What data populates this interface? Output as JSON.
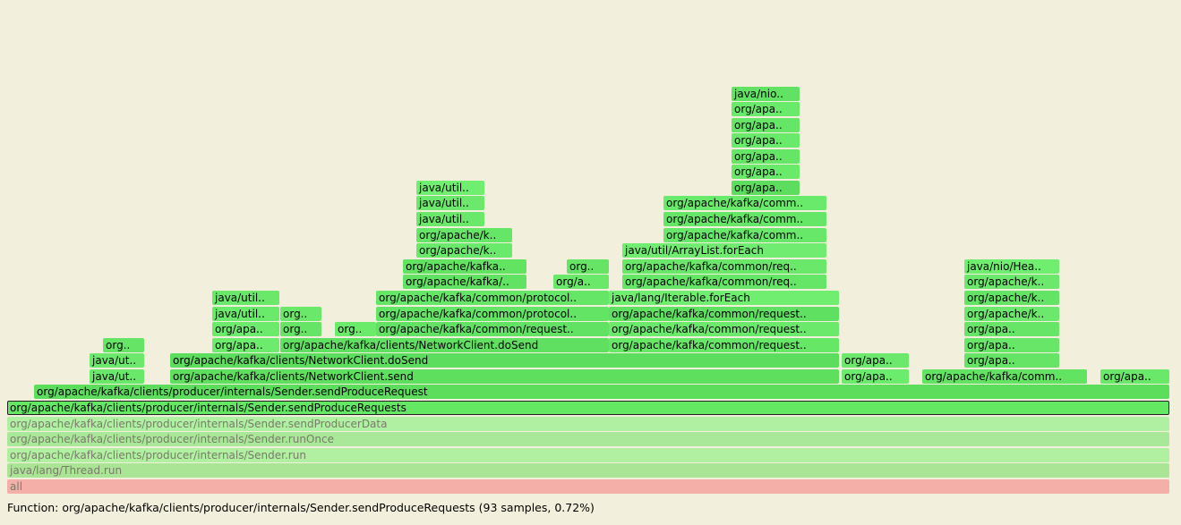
{
  "status": {
    "text": "Function: org/apache/kafka/clients/producer/internals/Sender.sendProduceRequests (93 samples, 0.72%)"
  },
  "frames": [
    {
      "label": "all",
      "color": "#f4b0a8",
      "dim": true
    },
    {
      "label": "java/lang/Thread.run",
      "color": "#a9e594",
      "dim": true
    },
    {
      "label": "org/apache/kafka/clients/producer/internals/Sender.run",
      "color": "#b0f0a0",
      "dim": true
    },
    {
      "label": "org/apache/kafka/clients/producer/internals/Sender.runOnce",
      "color": "#a9e898",
      "dim": true
    },
    {
      "label": "org/apache/kafka/clients/producer/internals/Sender.sendProducerData",
      "color": "#aff0a2",
      "dim": true
    },
    {
      "label": "org/apache/kafka/clients/producer/internals/Sender.sendProduceRequests",
      "color": "#64e864",
      "selected": true
    },
    {
      "label": "org/apache/kafka/clients/producer/internals/Sender.sendProduceRequest",
      "color": "#5cdd5c"
    },
    {
      "label": "java/ut..",
      "color": "#6ae86a"
    },
    {
      "label": "org/apache/kafka/clients/NetworkClient.send",
      "color": "#5ee05e"
    },
    {
      "label": "org/apa..",
      "color": "#6cec6c"
    },
    {
      "label": "org/apache/kafka/comm..",
      "color": "#62e462"
    },
    {
      "label": "org/apa..",
      "color": "#6ae86a"
    },
    {
      "label": "java/ut..",
      "color": "#6ce96c"
    },
    {
      "label": "org/apache/kafka/clients/NetworkClient.doSend",
      "color": "#5ddd5d"
    },
    {
      "label": "org/apa..",
      "color": "#6ce96c"
    },
    {
      "label": "org/apa..",
      "color": "#66e466"
    },
    {
      "label": "org..",
      "color": "#66e466"
    },
    {
      "label": "org/apa..",
      "color": "#6ceb6c"
    },
    {
      "label": "org/apache/kafka/clients/NetworkClient.doSend",
      "color": "#60e060"
    },
    {
      "label": "org/apache/kafka/common/request..",
      "color": "#66e766"
    },
    {
      "label": "org/apa..",
      "color": "#68e668"
    },
    {
      "label": "org/apa..",
      "color": "#6cea6c"
    },
    {
      "label": "org..",
      "color": "#66e466"
    },
    {
      "label": "org..",
      "color": "#6aec6a"
    },
    {
      "label": "org/apache/kafka/common/request..",
      "color": "#62e262"
    },
    {
      "label": "org/apache/kafka/common/request..",
      "color": "#6ae96a"
    },
    {
      "label": "org/apa..",
      "color": "#66e566"
    },
    {
      "label": "java/util..",
      "color": "#6aea6a"
    },
    {
      "label": "org..",
      "color": "#6ae86a"
    },
    {
      "label": "org/apache/kafka/common/protocol..",
      "color": "#64e464"
    },
    {
      "label": "org/apache/kafka/common/request..",
      "color": "#60e060"
    },
    {
      "label": "org/apache/k..",
      "color": "#6ce86c"
    },
    {
      "label": "java/util..",
      "color": "#6ae86a"
    },
    {
      "label": "org/apache/kafka/common/protocol..",
      "color": "#66e666"
    },
    {
      "label": "java/lang/Iterable.forEach",
      "color": "#70ee70"
    },
    {
      "label": "org/apache/k..",
      "color": "#64e464"
    },
    {
      "label": "org/apache/kafka/..",
      "color": "#62e262"
    },
    {
      "label": "org/a..",
      "color": "#6ae86a"
    },
    {
      "label": "org/apache/kafka/common/req..",
      "color": "#66e666"
    },
    {
      "label": "org/apache/k..",
      "color": "#6ce86c"
    },
    {
      "label": "org/apache/kafka..",
      "color": "#62e362"
    },
    {
      "label": "org..",
      "color": "#66e466"
    },
    {
      "label": "org/apache/kafka/common/req..",
      "color": "#6ae86a"
    },
    {
      "label": "java/nio/Hea..",
      "color": "#70ee70"
    },
    {
      "label": "org/apache/k..",
      "color": "#6aea6a"
    },
    {
      "label": "java/util/ArrayList.forEach",
      "color": "#70ec70"
    },
    {
      "label": "org/apache/k..",
      "color": "#66e666"
    },
    {
      "label": "org/apache/kafka/comm..",
      "color": "#68e868"
    },
    {
      "label": "java/util..",
      "color": "#6ae86a"
    },
    {
      "label": "org/apache/kafka/comm..",
      "color": "#66e666"
    },
    {
      "label": "java/util..",
      "color": "#6ce86c"
    },
    {
      "label": "org/apache/kafka/comm..",
      "color": "#6aea6a"
    },
    {
      "label": "org/apa..",
      "color": "#5ddd5d"
    },
    {
      "label": "java/util..",
      "color": "#70ee70"
    },
    {
      "label": "org/apa..",
      "color": "#6aea6a"
    },
    {
      "label": "org/apa..",
      "color": "#66e666"
    },
    {
      "label": "org/apa..",
      "color": "#6aea6a"
    },
    {
      "label": "org/apa..",
      "color": "#66e666"
    },
    {
      "label": "org/apa..",
      "color": "#6aea6a"
    },
    {
      "label": "java/nio..",
      "color": "#62e262"
    }
  ]
}
